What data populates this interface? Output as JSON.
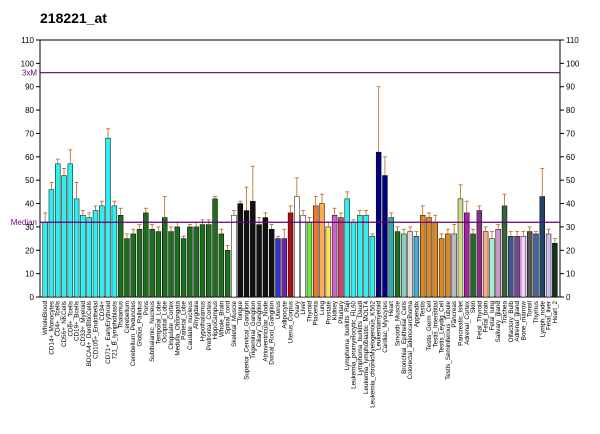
{
  "chart_data": {
    "type": "bar",
    "title": "218221_at",
    "xlabel": "",
    "ylabel": "",
    "ylim": [
      0,
      110
    ],
    "yticks": [
      0,
      10,
      20,
      30,
      40,
      50,
      60,
      70,
      80,
      90,
      100,
      110
    ],
    "grid": false,
    "reference_lines": [
      {
        "label": "3xM",
        "value": 96,
        "color": "#660077"
      },
      {
        "label": "Median",
        "value": 32,
        "color": "#660077"
      }
    ],
    "categories": [
      "WholeBlood",
      "CD14+_Monocytes",
      "CD4+_Tcells",
      "CD56+_NKCells",
      "CD8+_Tcells",
      "CD19+_Bcells",
      "CD33+_Myeloid",
      "BDCA4+_DentriticCells",
      "CD105+_Endothelial",
      "CD34+",
      "CD71+_EarlyErythroid",
      "721_B_lymphoblasts",
      "Thalamus",
      "Cerebellum",
      "Cerebellum_Peduncles",
      "Globus_Pallidus",
      "Pons",
      "Subthalamic_Nucleus",
      "Temporal_Lobe",
      "Occipital_Lobe",
      "Cingulate_Cortex",
      "Medulla_Oblongata",
      "Parietal_Lobe",
      "Caudate_nucleus",
      "Amygdala",
      "Hypothalamus",
      "Prefrontal_Cortex",
      "Hippocampus",
      "Whole_Brain",
      "Spinal_cord",
      "Skeletal_Muscle",
      "Tongue",
      "Superior_Cervical_Ganglion",
      "Trigeminal_Ganglion",
      "Ciliary_Ganglion",
      "Atrioventricular_Node",
      "Dorsal_Root_Ganglion",
      "Uterus",
      "Adipocyte",
      "Uterus_Corpus",
      "Ovary",
      "Liver",
      "Thyroid",
      "Placenta",
      "Lung",
      "Prostate",
      "Kidney",
      "Pituitary",
      "Lymphoma_burkitts_Raji",
      "Leukemia_promyelocytic_HL60",
      "Lymphoma_burkitts_Daudi",
      "Leukemia_lymphoblastic_MOLT4",
      "Leukemia_chronicMyelogenous_K562",
      "Leukemiamyeloid",
      "Cardiac_Myocytes",
      "Heart",
      "Smooth_Muscle",
      "Bronchial_Epithelial_Cells",
      "Colorectal_adenocarcinoma",
      "Appendix",
      "Testis",
      "Testis_Germ_Cell",
      "Testis_Interstitial",
      "Testis_Leydig_Cell",
      "Testis_Seminiferous_Tubule",
      "Pancreas",
      "Pancreatic_Islet",
      "Adrenal_Cortex",
      "Skin",
      "Fetal_Thyroid",
      "Fetal_brain",
      "Fetal_lung",
      "Salivary_gland",
      "Trachea",
      "Olfactory_Bulb",
      "Adrenal_gland",
      "Bone_marrow",
      "Tonsil",
      "Thymus",
      "Lymph_node",
      "Fetal_liver",
      "Heart_2"
    ],
    "values": [
      32,
      46,
      57,
      52,
      57,
      42,
      35,
      34,
      37,
      39,
      68,
      39,
      35,
      25,
      27,
      29,
      36,
      29,
      28,
      34,
      28,
      30,
      25,
      30,
      30,
      31,
      31,
      42,
      27,
      20,
      35,
      40,
      37,
      41,
      31,
      34,
      29,
      25,
      25,
      36,
      43,
      35,
      32,
      39,
      40,
      30,
      35,
      34,
      42,
      32,
      35,
      35,
      26,
      62,
      52,
      34,
      28,
      27,
      28,
      26,
      35,
      34,
      32,
      25,
      27,
      27,
      42,
      36,
      27,
      37,
      28,
      25,
      29,
      39,
      26,
      26,
      26,
      28,
      27,
      43,
      27,
      23
    ],
    "errors": [
      4,
      3,
      2,
      3,
      6,
      7,
      2,
      2,
      2,
      2,
      4,
      2,
      3,
      2,
      2,
      2,
      2,
      2,
      2,
      9,
      2,
      2,
      1,
      1,
      2,
      2,
      2,
      1,
      2,
      2,
      2,
      1,
      10,
      15,
      3,
      2,
      2,
      1,
      4,
      3,
      8,
      2,
      2,
      4,
      4,
      2,
      3,
      2,
      3,
      1,
      2,
      2,
      1,
      28,
      8,
      2,
      2,
      2,
      2,
      2,
      4,
      2,
      3,
      2,
      2,
      4,
      6,
      5,
      2,
      2,
      2,
      3,
      2,
      5,
      2,
      2,
      2,
      2,
      1,
      12,
      2,
      2
    ],
    "colors": [
      "#33eeee",
      "#33eeee",
      "#33eeee",
      "#33eeee",
      "#33eeee",
      "#33eeee",
      "#33eeee",
      "#33eeee",
      "#33eeee",
      "#33eeee",
      "#33eeee",
      "#33eeee",
      "#1f6e1f",
      "#1f6e1f",
      "#1f6e1f",
      "#1f6e1f",
      "#1f6e1f",
      "#1f6e1f",
      "#1f6e1f",
      "#1f6e1f",
      "#1f6e1f",
      "#1f6e1f",
      "#1f6e1f",
      "#1f6e1f",
      "#1f6e1f",
      "#1f6e1f",
      "#1f6e1f",
      "#1f6e1f",
      "#1f6e1f",
      "#1f6e1f",
      "#ffffff",
      "#111111",
      "#111111",
      "#111111",
      "#111111",
      "#111111",
      "#111111",
      "#3333cc",
      "#7722aa",
      "#aa1111",
      "#ffffff",
      "#ffffff",
      "#66ee44",
      "#ee7733",
      "#ffaa55",
      "#ffdd55",
      "#cc66cc",
      "#cc4466",
      "#33eeee",
      "#33eeee",
      "#33eeee",
      "#33eeee",
      "#33eeee",
      "#000080",
      "#000080",
      "#33aaaa",
      "#1f6e1f",
      "#88ccbb",
      "#dddddd",
      "#44aadd",
      "#dd8822",
      "#dd8822",
      "#dd8822",
      "#dd8822",
      "#dd8822",
      "#bbbbbb",
      "#ccdd88",
      "#aa22aa",
      "#1f6e1f",
      "#883388",
      "#ffaa88",
      "#aaeecc",
      "#cc99cc",
      "#336633",
      "#445588",
      "#774499",
      "#ffccff",
      "#555555",
      "#446699",
      "#224466",
      "#ccbbee",
      "#113311"
    ]
  }
}
